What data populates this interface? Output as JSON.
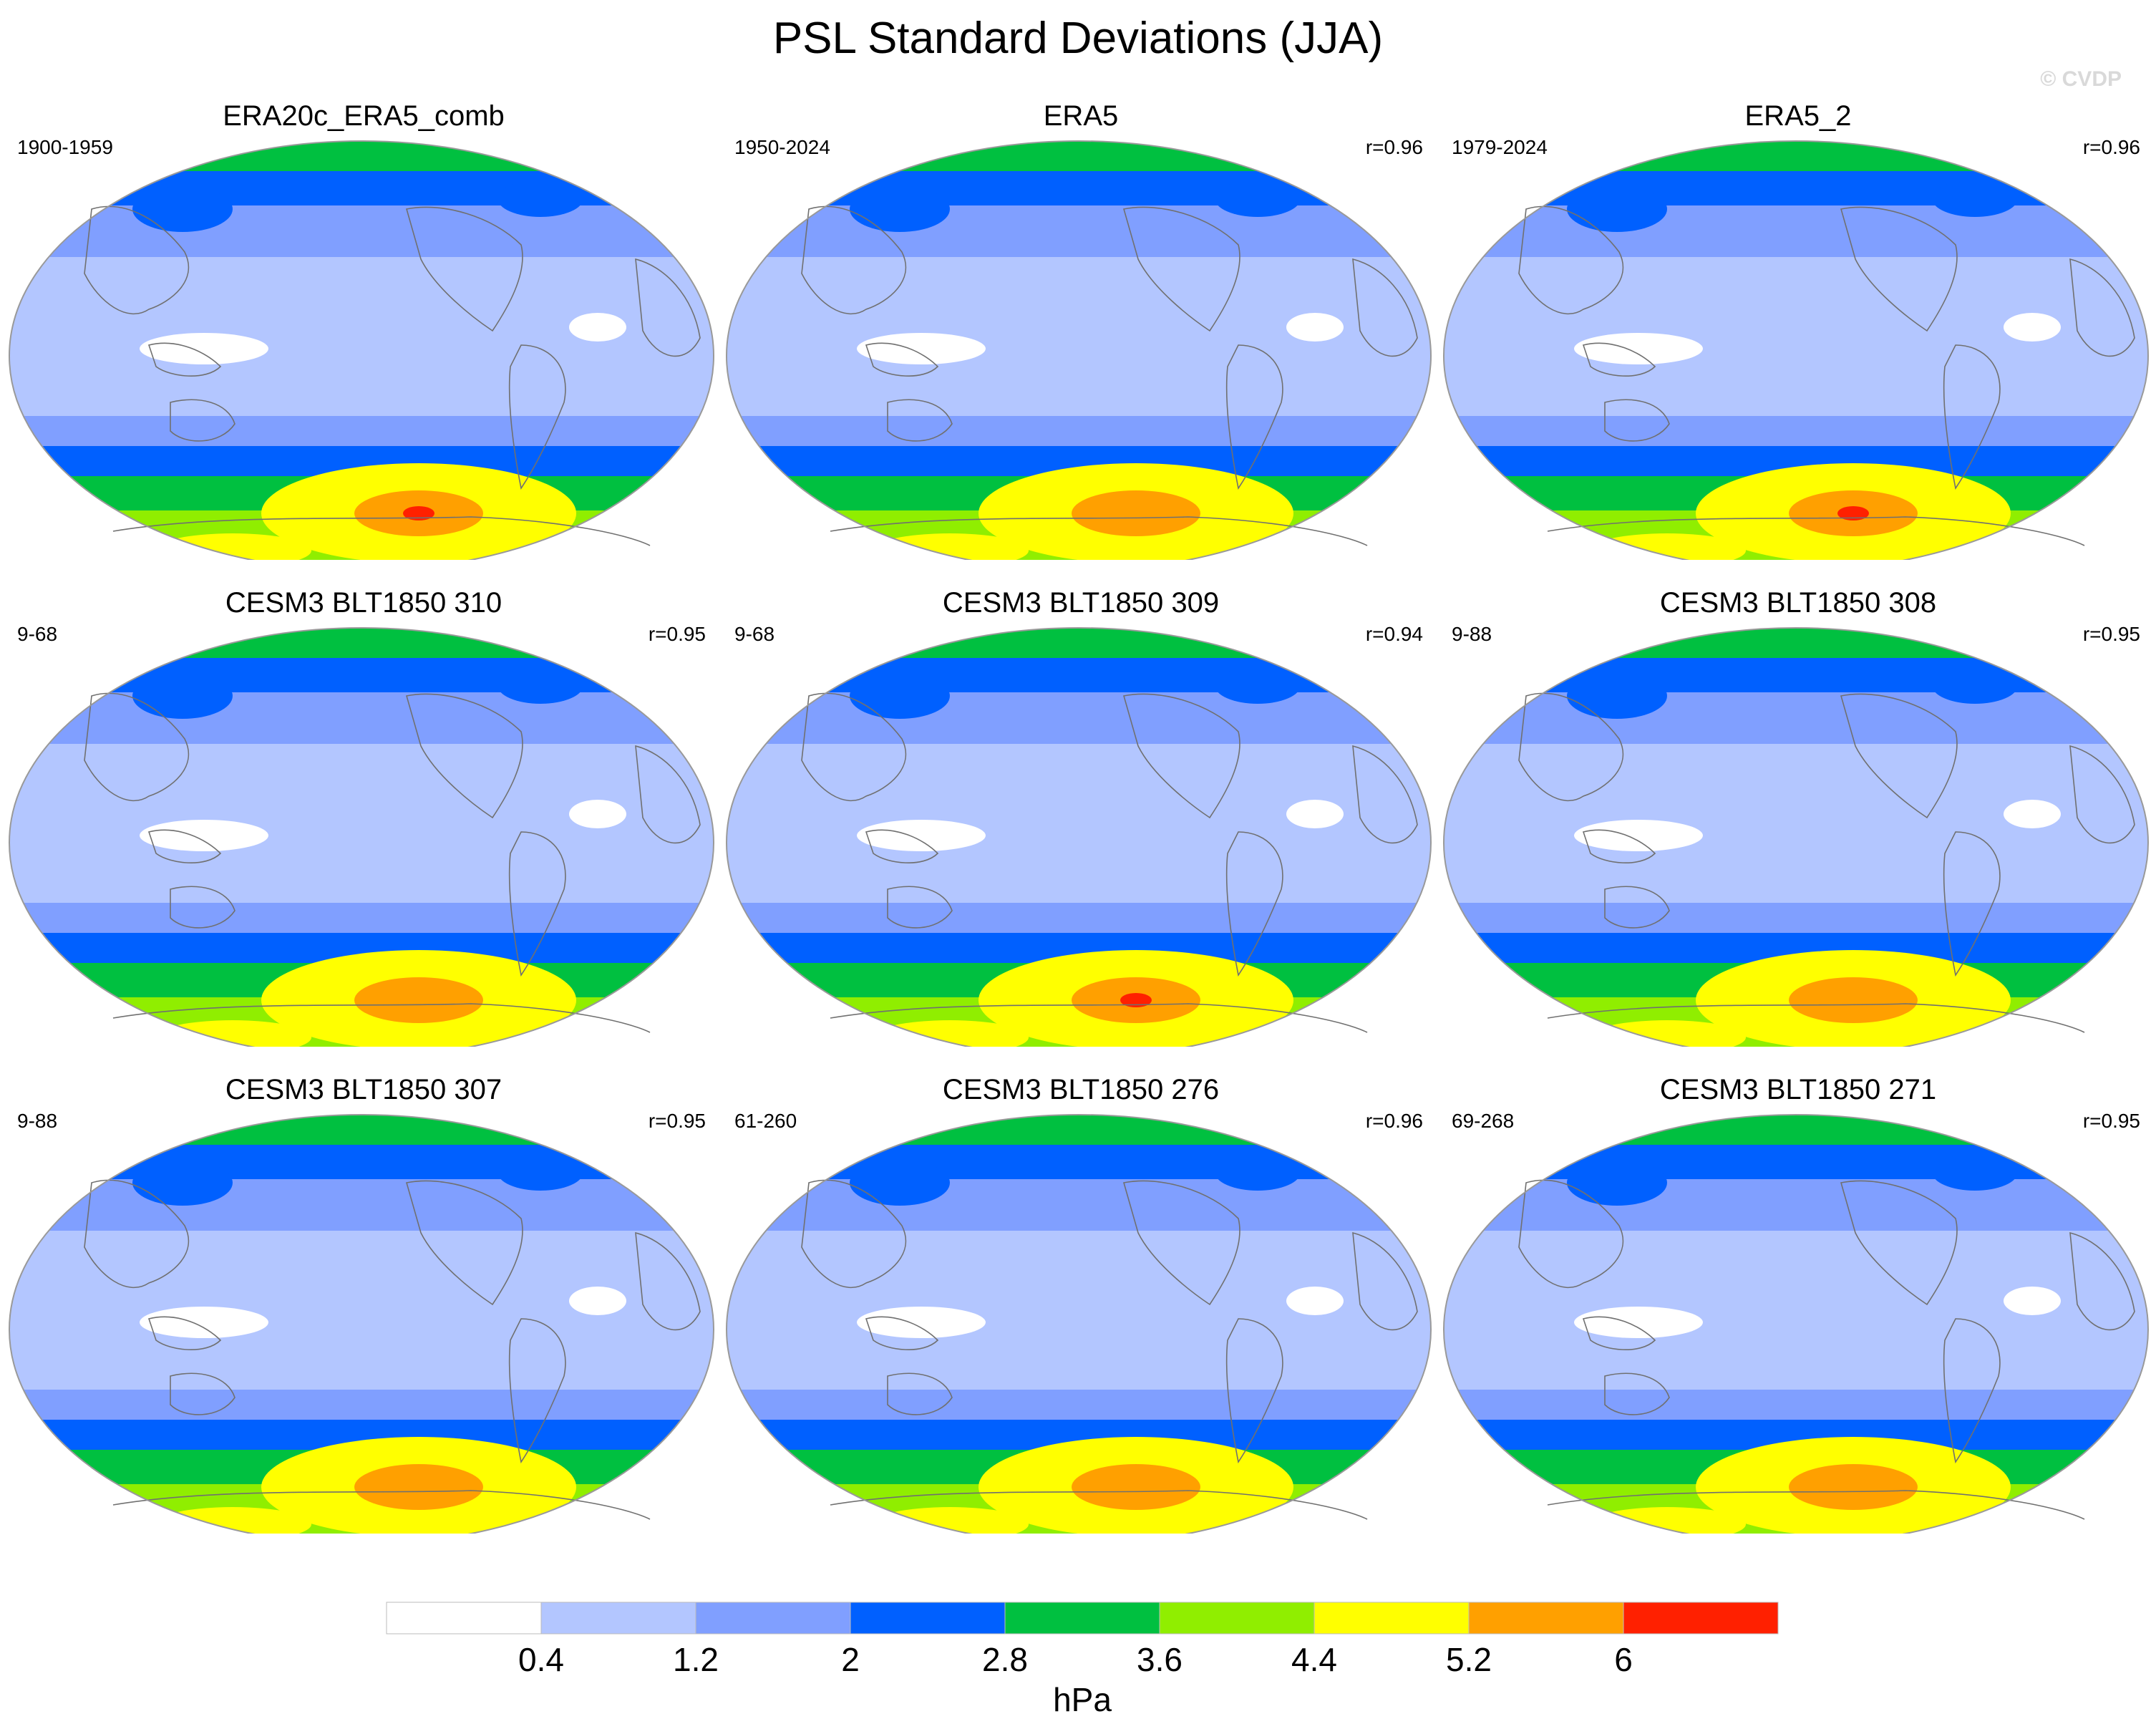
{
  "title": "PSL Standard Deviations (JJA)",
  "watermark": "© CVDP",
  "colors": {
    "levels": [
      "#ffffff",
      "#b3c6ff",
      "#809fff",
      "#0060ff",
      "#00c040",
      "#90ee00",
      "#ffff00",
      "#ffa000",
      "#ff2000"
    ],
    "land_outline": "#707070",
    "map_border": "#999999"
  },
  "chart_data": {
    "type": "contour-map",
    "title": "PSL Standard Deviations (JJA)",
    "units": "hPa",
    "projection": "Robinson",
    "colorbar": {
      "levels": [
        0.4,
        1.2,
        2,
        2.8,
        3.6,
        4.4,
        5.2,
        6
      ],
      "tick_labels": [
        "0.4",
        "1.2",
        "2",
        "2.8",
        "3.6",
        "4.4",
        "5.2",
        "6"
      ],
      "label": "hPa"
    },
    "panels": [
      {
        "title": "ERA20c_ERA5_comb",
        "years": "1900-1959",
        "r": "",
        "southern_max": 6.4,
        "northern_max": 3.0
      },
      {
        "title": "ERA5",
        "years": "1950-2024",
        "r": "r=0.96",
        "southern_max": 5.4,
        "northern_max": 3.8
      },
      {
        "title": "ERA5_2",
        "years": "1979-2024",
        "r": "r=0.96",
        "southern_max": 6.1,
        "northern_max": 3.8
      },
      {
        "title": "CESM3 BLT1850 310",
        "years": "9-68",
        "r": "r=0.95",
        "southern_max": 5.6,
        "northern_max": 3.0
      },
      {
        "title": "CESM3 BLT1850 309",
        "years": "9-68",
        "r": "r=0.94",
        "southern_max": 6.2,
        "northern_max": 3.0
      },
      {
        "title": "CESM3 BLT1850 308",
        "years": "9-88",
        "r": "r=0.95",
        "southern_max": 5.4,
        "northern_max": 3.0
      },
      {
        "title": "CESM3 BLT1850 307",
        "years": "9-88",
        "r": "r=0.95",
        "southern_max": 5.6,
        "northern_max": 3.7
      },
      {
        "title": "CESM3 BLT1850 276",
        "years": "61-260",
        "r": "r=0.96",
        "southern_max": 5.5,
        "northern_max": 3.7
      },
      {
        "title": "CESM3 BLT1850 271",
        "years": "69-268",
        "r": "r=0.95",
        "southern_max": 5.6,
        "northern_max": 3.7
      }
    ]
  }
}
